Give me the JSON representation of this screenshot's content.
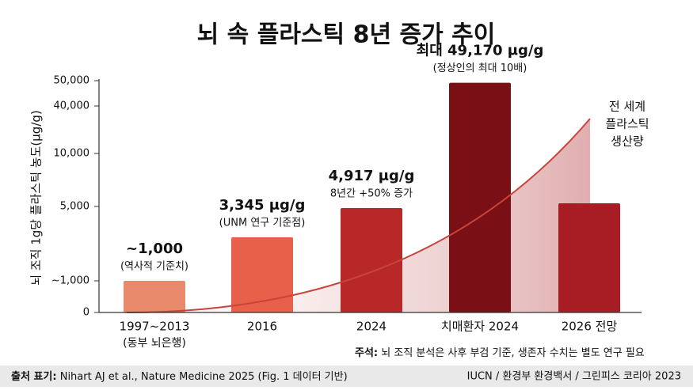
{
  "chart_data": {
    "type": "bar",
    "title": "뇌 속 플라스틱 8년 증가 추이",
    "y_label": "뇌 조직 1g당 플라스틱 농도(μg/g)",
    "categories": [
      "1997~2013",
      "2016",
      "2024",
      "치매환자 2024",
      "2026 전망"
    ],
    "category_notes": [
      "(동부 뇌은행)",
      null,
      null,
      null,
      null
    ],
    "values": [
      1000,
      3345,
      4917,
      49170,
      5300
    ],
    "value_labels": [
      "~1,000",
      "3,345 μg/g",
      "4,917 μg/g",
      "최대 49,170 μg/g",
      null
    ],
    "bar_notes": [
      "(역사적 기준치)",
      "(UNM 연구 기준점)",
      "8년간 +50% 증가",
      "(정상인의 최대 10배)",
      null
    ],
    "colors": [
      "#ea8a6c",
      "#e8604a",
      "#b82828",
      "#7a1016",
      "#a81d24"
    ],
    "ylim": [
      0,
      50000
    ],
    "yticks": [
      0,
      {
        "value": 1000,
        "label": "~1,000"
      },
      {
        "value": 5000,
        "label": "5,000"
      },
      {
        "value": 10000,
        "label": "10,000"
      },
      {
        "value": 40000,
        "label": "40,000"
      },
      {
        "value": 50000,
        "label": "50,000"
      }
    ],
    "trend_label": [
      "전 세계",
      "플라스틱",
      "생산량"
    ],
    "note_label": "주석:",
    "note": "뇌 조직 분석은 사후 부검 기준, 생존자 수치는 별도 연구 필요",
    "source_label": "출처 표기:",
    "source": "Nihart AJ et al., Nature Medicine 2025 (Fig. 1 데이터 기반)",
    "source_right": "IUCN / 환경부 환경백서 / 그린피스 코리아 2023"
  }
}
